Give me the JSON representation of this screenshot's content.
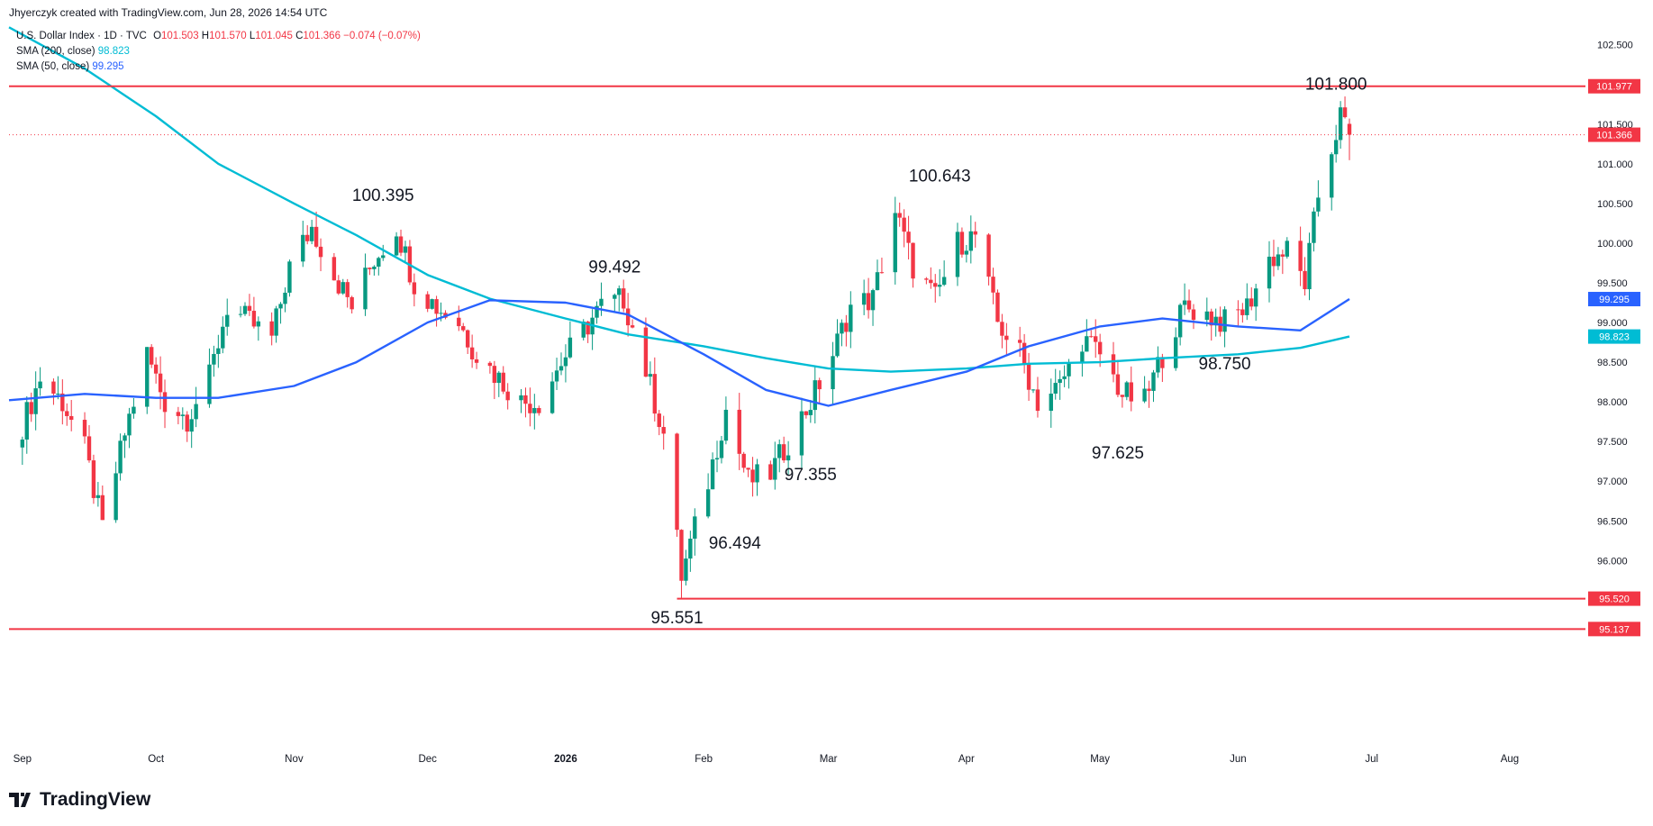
{
  "header": {
    "created_by": "Jhyerczyk created with TradingView.com, Jun 28, 2026 14:54 UTC"
  },
  "legend": {
    "symbol": "U.S. Dollar Index · 1D · TVC",
    "ohlc": {
      "o_label": "O",
      "o": "101.503",
      "h_label": "H",
      "h": "101.570",
      "l_label": "L",
      "l": "101.045",
      "c_label": "C",
      "c": "101.366",
      "change": "−0.074 (−0.07%)"
    },
    "sma200": {
      "label": "SMA (200, close)",
      "value": "98.823",
      "color": "#00bcd4"
    },
    "sma50": {
      "label": "SMA (50, close)",
      "value": "99.295",
      "color": "#2962ff"
    }
  },
  "brand": {
    "name": "TradingView",
    "logo_icon": "tradingview-logo-icon"
  },
  "colors": {
    "up": "#089981",
    "down": "#f23645",
    "sma200": "#00bcd4",
    "sma50": "#2962ff",
    "level": "#f23645"
  },
  "chart_data": {
    "type": "candlestick",
    "ylim": [
      95.05,
      102.78
    ],
    "x_range": [
      "2025-08-29",
      "2026-08-18"
    ],
    "y_ticks": [
      "102.500",
      "101.500",
      "101.000",
      "100.500",
      "100.000",
      "99.500",
      "99.000",
      "98.500",
      "98.000",
      "97.500",
      "97.000",
      "96.500",
      "96.000"
    ],
    "x_ticks": [
      {
        "label": "Sep",
        "date": "2025-09-01"
      },
      {
        "label": "Oct",
        "date": "2025-10-01"
      },
      {
        "label": "Nov",
        "date": "2025-11-01"
      },
      {
        "label": "Dec",
        "date": "2025-12-01"
      },
      {
        "label": "2026",
        "date": "2026-01-01"
      },
      {
        "label": "Feb",
        "date": "2026-02-01"
      },
      {
        "label": "Mar",
        "date": "2026-03-01"
      },
      {
        "label": "Apr",
        "date": "2026-04-01"
      },
      {
        "label": "May",
        "date": "2026-05-01"
      },
      {
        "label": "Jun",
        "date": "2026-06-01"
      },
      {
        "label": "Jul",
        "date": "2026-07-01"
      },
      {
        "label": "Aug",
        "date": "2026-08-01"
      }
    ],
    "horizontal_levels": [
      {
        "value": 101.977,
        "label": "101.977",
        "color": "#f23645",
        "from": "start"
      },
      {
        "value": 95.52,
        "label": "95.520",
        "color": "#f23645",
        "from": "2026-01-26"
      },
      {
        "value": 95.137,
        "label": "95.137",
        "color": "#f23645",
        "from": "start"
      }
    ],
    "last_price": {
      "value": 101.366,
      "label": "101.366",
      "color": "#f23645"
    },
    "sma_labels": [
      {
        "value": 99.295,
        "label": "99.295",
        "color": "#2962ff"
      },
      {
        "value": 98.823,
        "label": "98.823",
        "color": "#00bcd4"
      }
    ],
    "annotations": [
      {
        "text": "100.395",
        "date": "2025-11-21",
        "value": 100.395,
        "pos": "above"
      },
      {
        "text": "99.492",
        "date": "2026-01-12",
        "value": 99.492,
        "pos": "above"
      },
      {
        "text": "100.643",
        "date": "2026-03-26",
        "value": 100.643,
        "pos": "above"
      },
      {
        "text": "101.800",
        "date": "2026-06-23",
        "value": 101.8,
        "pos": "above"
      },
      {
        "text": "97.355",
        "date": "2026-02-25",
        "value": 97.355,
        "pos": "below"
      },
      {
        "text": "96.494",
        "date": "2026-02-08",
        "value": 96.494,
        "pos": "below"
      },
      {
        "text": "95.551",
        "date": "2026-01-26",
        "value": 95.551,
        "pos": "below"
      },
      {
        "text": "97.625",
        "date": "2026-05-05",
        "value": 97.625,
        "pos": "below"
      },
      {
        "text": "98.750",
        "date": "2026-05-29",
        "value": 98.75,
        "pos": "below"
      }
    ],
    "closes": [
      {
        "date": "2025-09-01",
        "close": 97.7
      },
      {
        "date": "2025-09-05",
        "close": 98.3
      },
      {
        "date": "2025-09-10",
        "close": 98.0
      },
      {
        "date": "2025-09-15",
        "close": 97.4
      },
      {
        "date": "2025-09-19",
        "close": 96.4
      },
      {
        "date": "2025-09-24",
        "close": 97.6
      },
      {
        "date": "2025-09-29",
        "close": 98.6
      },
      {
        "date": "2025-10-03",
        "close": 98.0
      },
      {
        "date": "2025-10-08",
        "close": 97.8
      },
      {
        "date": "2025-10-13",
        "close": 98.3
      },
      {
        "date": "2025-10-17",
        "close": 99.2
      },
      {
        "date": "2025-10-22",
        "close": 99.0
      },
      {
        "date": "2025-10-27",
        "close": 98.8
      },
      {
        "date": "2025-10-31",
        "close": 99.7
      },
      {
        "date": "2025-11-05",
        "close": 100.2
      },
      {
        "date": "2025-11-10",
        "close": 99.6
      },
      {
        "date": "2025-11-14",
        "close": 99.2
      },
      {
        "date": "2025-11-19",
        "close": 99.8
      },
      {
        "date": "2025-11-24",
        "close": 100.2
      },
      {
        "date": "2025-11-28",
        "close": 99.5
      },
      {
        "date": "2025-12-03",
        "close": 99.2
      },
      {
        "date": "2025-12-08",
        "close": 99.0
      },
      {
        "date": "2025-12-12",
        "close": 98.6
      },
      {
        "date": "2025-12-17",
        "close": 98.3
      },
      {
        "date": "2025-12-22",
        "close": 98.0
      },
      {
        "date": "2025-12-26",
        "close": 98.0
      },
      {
        "date": "2025-12-31",
        "close": 98.5
      },
      {
        "date": "2026-01-05",
        "close": 98.9
      },
      {
        "date": "2026-01-09",
        "close": 99.2
      },
      {
        "date": "2026-01-14",
        "close": 99.3
      },
      {
        "date": "2026-01-19",
        "close": 98.4
      },
      {
        "date": "2026-01-23",
        "close": 97.6
      },
      {
        "date": "2026-01-27",
        "close": 95.8
      },
      {
        "date": "2026-02-02",
        "close": 97.0
      },
      {
        "date": "2026-02-06",
        "close": 97.9
      },
      {
        "date": "2026-02-11",
        "close": 97.0
      },
      {
        "date": "2026-02-16",
        "close": 97.1
      },
      {
        "date": "2026-02-20",
        "close": 97.5
      },
      {
        "date": "2026-02-25",
        "close": 98.0
      },
      {
        "date": "2026-03-02",
        "close": 98.6
      },
      {
        "date": "2026-03-06",
        "close": 99.2
      },
      {
        "date": "2026-03-11",
        "close": 99.3
      },
      {
        "date": "2026-03-16",
        "close": 100.4
      },
      {
        "date": "2026-03-20",
        "close": 99.7
      },
      {
        "date": "2026-03-25",
        "close": 99.3
      },
      {
        "date": "2026-03-30",
        "close": 100.0
      },
      {
        "date": "2026-04-03",
        "close": 100.1
      },
      {
        "date": "2026-04-08",
        "close": 99.0
      },
      {
        "date": "2026-04-13",
        "close": 98.6
      },
      {
        "date": "2026-04-17",
        "close": 98.0
      },
      {
        "date": "2026-04-22",
        "close": 98.2
      },
      {
        "date": "2026-04-27",
        "close": 98.8
      },
      {
        "date": "2026-05-01",
        "close": 98.6
      },
      {
        "date": "2026-05-06",
        "close": 98.1
      },
      {
        "date": "2026-05-11",
        "close": 98.0
      },
      {
        "date": "2026-05-15",
        "close": 98.6
      },
      {
        "date": "2026-05-20",
        "close": 99.2
      },
      {
        "date": "2026-05-25",
        "close": 99.1
      },
      {
        "date": "2026-05-29",
        "close": 99.0
      },
      {
        "date": "2026-06-03",
        "close": 99.2
      },
      {
        "date": "2026-06-08",
        "close": 99.8
      },
      {
        "date": "2026-06-12",
        "close": 99.9
      },
      {
        "date": "2026-06-16",
        "close": 99.5
      },
      {
        "date": "2026-06-19",
        "close": 100.6
      },
      {
        "date": "2026-06-22",
        "close": 101.2
      },
      {
        "date": "2026-06-24",
        "close": 101.6
      },
      {
        "date": "2026-06-26",
        "close": 101.366
      }
    ],
    "sma200_points": [
      {
        "date": "2025-08-29",
        "value": 102.72
      },
      {
        "date": "2025-09-15",
        "value": 102.2
      },
      {
        "date": "2025-10-01",
        "value": 101.6
      },
      {
        "date": "2025-10-15",
        "value": 101.0
      },
      {
        "date": "2025-11-01",
        "value": 100.5
      },
      {
        "date": "2025-11-15",
        "value": 100.1
      },
      {
        "date": "2025-12-01",
        "value": 99.6
      },
      {
        "date": "2025-12-15",
        "value": 99.3
      },
      {
        "date": "2026-01-01",
        "value": 99.05
      },
      {
        "date": "2026-01-15",
        "value": 98.85
      },
      {
        "date": "2026-02-01",
        "value": 98.7
      },
      {
        "date": "2026-02-15",
        "value": 98.55
      },
      {
        "date": "2026-03-01",
        "value": 98.42
      },
      {
        "date": "2026-03-15",
        "value": 98.38
      },
      {
        "date": "2026-04-01",
        "value": 98.42
      },
      {
        "date": "2026-04-15",
        "value": 98.48
      },
      {
        "date": "2026-05-01",
        "value": 98.5
      },
      {
        "date": "2026-05-15",
        "value": 98.55
      },
      {
        "date": "2026-06-01",
        "value": 98.6
      },
      {
        "date": "2026-06-15",
        "value": 98.68
      },
      {
        "date": "2026-06-26",
        "value": 98.823
      }
    ],
    "sma50_points": [
      {
        "date": "2025-08-29",
        "value": 98.02
      },
      {
        "date": "2025-09-15",
        "value": 98.1
      },
      {
        "date": "2025-10-01",
        "value": 98.05
      },
      {
        "date": "2025-10-15",
        "value": 98.05
      },
      {
        "date": "2025-11-01",
        "value": 98.2
      },
      {
        "date": "2025-11-15",
        "value": 98.5
      },
      {
        "date": "2025-12-01",
        "value": 99.0
      },
      {
        "date": "2025-12-15",
        "value": 99.28
      },
      {
        "date": "2026-01-01",
        "value": 99.25
      },
      {
        "date": "2026-01-15",
        "value": 99.1
      },
      {
        "date": "2026-02-01",
        "value": 98.6
      },
      {
        "date": "2026-02-15",
        "value": 98.15
      },
      {
        "date": "2026-03-01",
        "value": 97.95
      },
      {
        "date": "2026-03-15",
        "value": 98.15
      },
      {
        "date": "2026-04-01",
        "value": 98.38
      },
      {
        "date": "2026-04-15",
        "value": 98.7
      },
      {
        "date": "2026-05-01",
        "value": 98.95
      },
      {
        "date": "2026-05-15",
        "value": 99.05
      },
      {
        "date": "2026-06-01",
        "value": 98.95
      },
      {
        "date": "2026-06-15",
        "value": 98.9
      },
      {
        "date": "2026-06-26",
        "value": 99.295
      }
    ]
  }
}
